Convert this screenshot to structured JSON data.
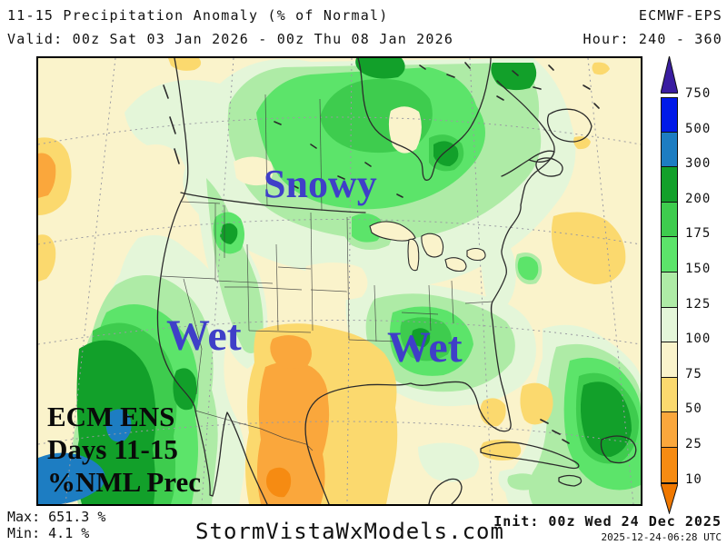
{
  "header": {
    "title": "11-15 Precipitation Anomaly (% of Normal)",
    "model": "ECMWF-EPS",
    "valid": "Valid: 00z Sat 03 Jan 2026 - 00z Thu 08 Jan 2026",
    "hour": "Hour: 240 - 360"
  },
  "map_annotations": {
    "snowy": "Snowy",
    "wet_west": "Wet",
    "wet_southeast": "Wet",
    "corner_line1": "ECM ENS",
    "corner_line2": "Days 11-15",
    "corner_line3": "%NML Prec"
  },
  "colorbar": {
    "boundary_labels": [
      "750",
      "500",
      "300",
      "200",
      "175",
      "150",
      "125",
      "100",
      "75",
      "50",
      "25",
      "10"
    ],
    "segment_colors": [
      "#0019E8",
      "#1D7DC2",
      "#12A02A",
      "#3ECC4E",
      "#5CE46A",
      "#AEEBA6",
      "#E4F6D9",
      "#FAF3CB",
      "#FBD96E",
      "#FAA73C",
      "#F68B12"
    ],
    "top_arrow_color": "#3A1DA1",
    "bottom_arrow_color": "#F07800"
  },
  "footer": {
    "max": "Max: 651.3 %",
    "min": "Min: 4.1 %",
    "site": "StormVistaWxModels.com",
    "init": "Init: 00z Wed 24 Dec 2025",
    "generated": "2025-12-24-06:28 UTC"
  }
}
